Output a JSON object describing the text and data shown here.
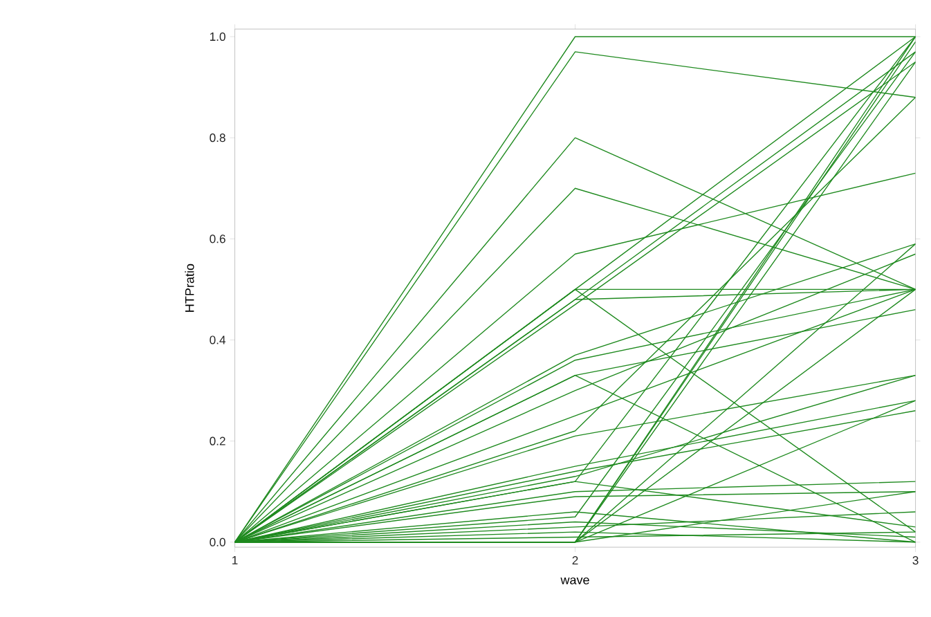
{
  "chart_data": {
    "type": "line",
    "xlabel": "wave",
    "ylabel": "HTPratio",
    "x": [
      1,
      2,
      3
    ],
    "xlim": [
      1,
      3
    ],
    "xticks": [
      1,
      2,
      3
    ],
    "ylim": [
      -0.01,
      1.015
    ],
    "yticks": [
      {
        "value": 0,
        "label": "0.0"
      },
      {
        "value": 0.2,
        "label": "0.2"
      },
      {
        "value": 0.4,
        "label": "0.4"
      },
      {
        "value": 0.6,
        "label": "0.6"
      },
      {
        "value": 0.8,
        "label": "0.8"
      },
      {
        "value": 1.0,
        "label": "1.0"
      }
    ],
    "grid": false,
    "marker": "none",
    "line_style": "solid",
    "series": [
      {
        "color": "#1f8a1f",
        "values": [
          0,
          1.0,
          1.0
        ]
      },
      {
        "color": "#1f8a1f",
        "values": [
          0,
          0.97,
          0.88
        ]
      },
      {
        "color": "#1f8a1f",
        "values": [
          0,
          0.8,
          0.5
        ]
      },
      {
        "color": "#1f8a1f",
        "values": [
          0,
          0.7,
          0.5
        ]
      },
      {
        "color": "#1f8a1f",
        "values": [
          0,
          0.57,
          0.73
        ]
      },
      {
        "color": "#1f8a1f",
        "values": [
          0,
          0.5,
          1.0
        ]
      },
      {
        "color": "#1f8a1f",
        "values": [
          0,
          0.48,
          0.97
        ]
      },
      {
        "color": "#1f8a1f",
        "values": [
          0,
          0.47,
          0.95
        ]
      },
      {
        "color": "#1f8a1f",
        "values": [
          0,
          0.5,
          0.02
        ]
      },
      {
        "color": "#1f8a1f",
        "values": [
          0,
          0.48,
          0.5
        ]
      },
      {
        "color": "#1f8a1f",
        "values": [
          0,
          0.37,
          0.59
        ]
      },
      {
        "color": "#1f8a1f",
        "values": [
          0,
          0.36,
          0.5
        ]
      },
      {
        "color": "#1f8a1f",
        "values": [
          0,
          0.33,
          0.0
        ]
      },
      {
        "color": "#1f8a1f",
        "values": [
          0,
          0.33,
          0.46
        ]
      },
      {
        "color": "#1f8a1f",
        "values": [
          0,
          0.3,
          0.57
        ]
      },
      {
        "color": "#1f8a1f",
        "values": [
          0,
          0.25,
          0.5
        ]
      },
      {
        "color": "#1f8a1f",
        "values": [
          0,
          0.22,
          0.88
        ]
      },
      {
        "color": "#1f8a1f",
        "values": [
          0,
          0.21,
          0.33
        ]
      },
      {
        "color": "#1f8a1f",
        "values": [
          0,
          0.15,
          0.28
        ]
      },
      {
        "color": "#1f8a1f",
        "values": [
          0,
          0.14,
          0.26
        ]
      },
      {
        "color": "#1f8a1f",
        "values": [
          0,
          0.13,
          0.33
        ]
      },
      {
        "color": "#1f8a1f",
        "values": [
          0,
          0.12,
          0.03
        ]
      },
      {
        "color": "#1f8a1f",
        "values": [
          0,
          0.1,
          0.12
        ]
      },
      {
        "color": "#1f8a1f",
        "values": [
          0,
          0.09,
          0.1
        ]
      },
      {
        "color": "#1f8a1f",
        "values": [
          0,
          0.06,
          0.0
        ]
      },
      {
        "color": "#1f8a1f",
        "values": [
          0,
          0.05,
          0.97
        ]
      },
      {
        "color": "#1f8a1f",
        "values": [
          0,
          0.03,
          0.06
        ]
      },
      {
        "color": "#1f8a1f",
        "values": [
          0,
          0.02,
          0.0
        ]
      },
      {
        "color": "#1f8a1f",
        "values": [
          0,
          0.01,
          0.02
        ]
      },
      {
        "color": "#1f8a1f",
        "values": [
          0,
          0.0,
          1.0
        ]
      },
      {
        "color": "#1f8a1f",
        "values": [
          0,
          0.0,
          0.99
        ]
      },
      {
        "color": "#1f8a1f",
        "values": [
          0,
          0.0,
          0.95
        ]
      },
      {
        "color": "#1f8a1f",
        "values": [
          0,
          0.0,
          0.59
        ]
      },
      {
        "color": "#1f8a1f",
        "values": [
          0,
          0.0,
          0.5
        ]
      },
      {
        "color": "#1f8a1f",
        "values": [
          0,
          0.0,
          0.28
        ]
      },
      {
        "color": "#1f8a1f",
        "values": [
          0,
          0.0,
          0.1
        ]
      },
      {
        "color": "#1f8a1f",
        "values": [
          0,
          0.12,
          1.0
        ]
      },
      {
        "color": "#1f8a1f",
        "values": [
          0,
          0.04,
          0.01
        ]
      },
      {
        "color": "#1f8a1f",
        "values": [
          0,
          0.5,
          0.5
        ]
      }
    ]
  }
}
